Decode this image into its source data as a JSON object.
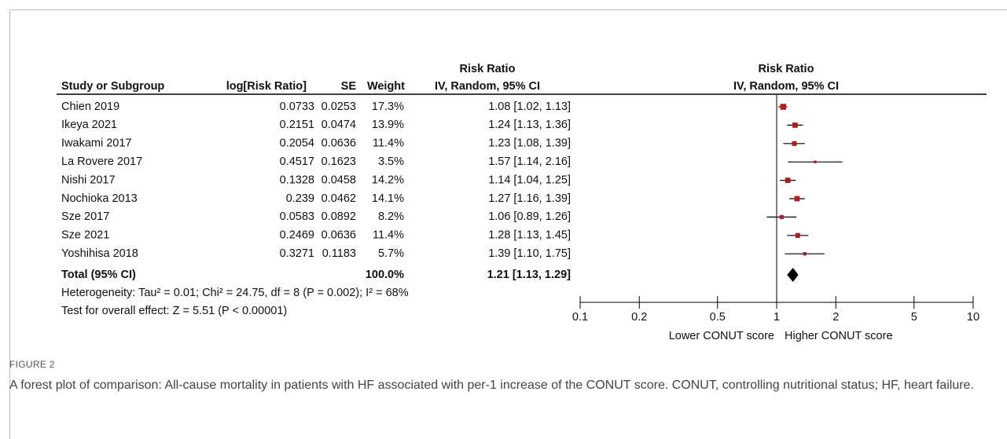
{
  "figure_label": "FIGURE 2",
  "caption": "A forest plot of comparison: All-cause mortality in patients with HF associated with per-1 increase of the CONUT score. CONUT, controlling nutritional status; HF, heart failure.",
  "chart_data": {
    "type": "forest",
    "table_title": "Risk Ratio",
    "columns": [
      "Study or Subgroup",
      "log[Risk Ratio]",
      "SE",
      "Weight",
      "IV, Random, 95% CI"
    ],
    "plot_title": "Risk Ratio",
    "plot_subtitle": "IV, Random, 95% CI",
    "categories": [
      "Chien 2019",
      "Ikeya 2021",
      "Iwakami 2017",
      "La Rovere 2017",
      "Nishi 2017",
      "Nochioka 2013",
      "Sze 2017",
      "Sze 2021",
      "Yoshihisa 2018"
    ],
    "log_rr": [
      0.0733,
      0.2151,
      0.2054,
      0.4517,
      0.1328,
      0.239,
      0.0583,
      0.2469,
      0.3271
    ],
    "se": [
      0.0253,
      0.0474,
      0.0636,
      0.1623,
      0.0458,
      0.0462,
      0.0892,
      0.0636,
      0.1183
    ],
    "weight": [
      17.3,
      13.9,
      11.4,
      3.5,
      14.2,
      14.1,
      8.2,
      11.4,
      5.7
    ],
    "weight_labels": [
      "17.3%",
      "13.9%",
      "11.4%",
      "3.5%",
      "14.2%",
      "14.1%",
      "8.2%",
      "11.4%",
      "5.7%"
    ],
    "ratio": [
      1.08,
      1.24,
      1.23,
      1.57,
      1.14,
      1.27,
      1.06,
      1.28,
      1.39
    ],
    "ci_low": [
      1.02,
      1.13,
      1.08,
      1.14,
      1.04,
      1.16,
      0.89,
      1.13,
      1.1
    ],
    "ci_high": [
      1.13,
      1.36,
      1.39,
      2.16,
      1.25,
      1.39,
      1.26,
      1.45,
      1.75
    ],
    "ci_labels": [
      "1.08 [1.02, 1.13]",
      "1.24 [1.13, 1.36]",
      "1.23 [1.08, 1.39]",
      "1.57 [1.14, 2.16]",
      "1.14 [1.04, 1.25]",
      "1.27 [1.16, 1.39]",
      "1.06 [0.89, 1.26]",
      "1.28 [1.13, 1.45]",
      "1.39 [1.10, 1.75]"
    ],
    "total": {
      "label": "Total (95% CI)",
      "weight": 100.0,
      "weight_label": "100.0%",
      "ratio": 1.21,
      "ci_low": 1.13,
      "ci_high": 1.29,
      "ci_label": "1.21 [1.13, 1.29]"
    },
    "heterogeneity": "Heterogeneity: Tau² = 0.01; Chi² = 24.75, df = 8 (P = 0.002); I² = 68%",
    "overall_effect": "Test for overall effect: Z = 5.51 (P < 0.00001)",
    "xscale": "log",
    "xlim": [
      0.1,
      10
    ],
    "xticks": [
      0.1,
      0.2,
      0.5,
      1,
      2,
      5,
      10
    ],
    "reference_line": 1,
    "xlabel_left": "Lower CONUT score",
    "xlabel_right": "Higher CONUT score",
    "color": "#b01c1c"
  }
}
